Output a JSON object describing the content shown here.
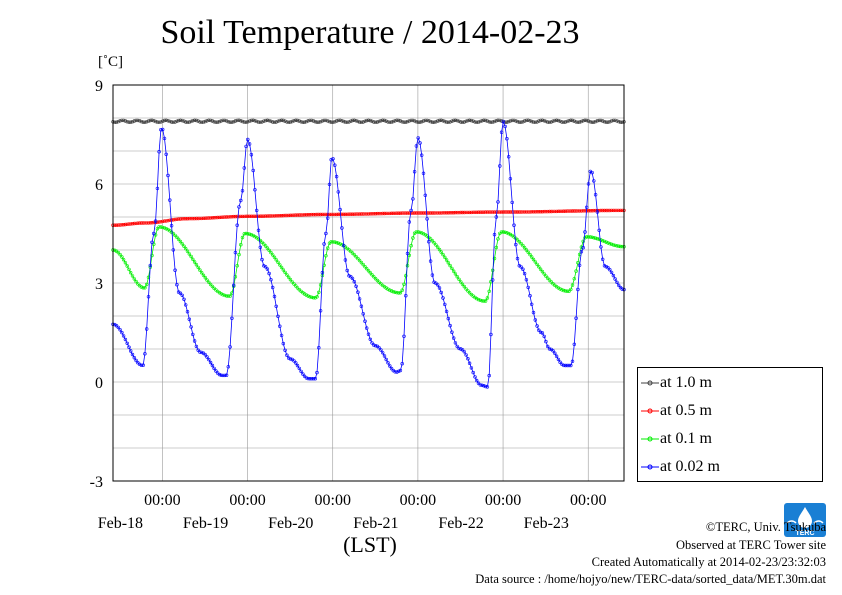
{
  "header": {
    "title": "Soil Temperature / 2014-02-23",
    "unit_label": "[˚C]",
    "x_axis_label": "(LST)"
  },
  "footer": {
    "copyright": "©TERC, Univ. Tsukuba",
    "site": "Observed at TERC Tower site",
    "created": "Created Automatically at 2014-02-23/23:32:03",
    "source": "Data source : /home/hojyo/new/TERC-data/sorted_data/MET.30m.dat",
    "logo_text": "TERC"
  },
  "legend": {
    "items": [
      {
        "label": "at 1.0 m",
        "color": "#404040"
      },
      {
        "label": "at 0.5 m",
        "color": "#ff0000"
      },
      {
        "label": "at 0.1 m",
        "color": "#00ee00"
      },
      {
        "label": "at 0.02 m",
        "color": "#0000ff"
      }
    ]
  },
  "chart_data": {
    "type": "line",
    "title": "Soil Temperature / 2014-02-23",
    "ylabel": "[˚C]",
    "xlabel": "(LST)",
    "x_unit": "days",
    "xlim": [
      -0.58,
      5.42
    ],
    "ylim": [
      -3,
      9
    ],
    "yticks": [
      -3,
      0,
      3,
      6,
      9
    ],
    "xticks": [
      {
        "x": 0,
        "time": "00:00",
        "date": "Feb-18"
      },
      {
        "x": 1,
        "time": "00:00",
        "date": "Feb-19"
      },
      {
        "x": 2,
        "time": "00:00",
        "date": "Feb-20"
      },
      {
        "x": 3,
        "time": "00:00",
        "date": "Feb-21"
      },
      {
        "x": 4,
        "time": "00:00",
        "date": "Feb-22"
      },
      {
        "x": 5,
        "time": "00:00",
        "date": "Feb-23"
      }
    ],
    "grid": true,
    "legend_position": "right-bottom-outside",
    "sampling": "30 min",
    "series": [
      {
        "name": "at 1.0 m",
        "color": "#404040",
        "knots": [
          [
            -0.58,
            7.9
          ],
          [
            5.42,
            7.9
          ]
        ]
      },
      {
        "name": "at 0.5 m",
        "color": "#ff0000",
        "knots": [
          [
            -0.58,
            4.75
          ],
          [
            -0.2,
            4.82
          ],
          [
            0.3,
            4.95
          ],
          [
            1.0,
            5.02
          ],
          [
            2.0,
            5.08
          ],
          [
            3.0,
            5.12
          ],
          [
            4.0,
            5.15
          ],
          [
            5.42,
            5.2
          ]
        ]
      },
      {
        "name": "at 0.1 m",
        "color": "#00ee00",
        "knots": [
          [
            -0.58,
            4.0
          ],
          [
            -0.21,
            2.85
          ],
          [
            -0.04,
            4.7
          ],
          [
            0.79,
            2.6
          ],
          [
            0.97,
            4.5
          ],
          [
            1.8,
            2.55
          ],
          [
            1.98,
            4.25
          ],
          [
            2.79,
            2.7
          ],
          [
            2.98,
            4.55
          ],
          [
            3.79,
            2.45
          ],
          [
            3.98,
            4.55
          ],
          [
            4.77,
            2.75
          ],
          [
            4.98,
            4.4
          ],
          [
            5.42,
            4.1
          ]
        ]
      },
      {
        "name": "at 0.02 m",
        "color": "#0000ff",
        "knots": [
          [
            -0.58,
            1.75
          ],
          [
            -0.23,
            0.5
          ],
          [
            -0.1,
            4.5
          ],
          [
            -0.01,
            7.7
          ],
          [
            0.2,
            2.7
          ],
          [
            0.45,
            0.9
          ],
          [
            0.7,
            0.2
          ],
          [
            0.75,
            0.2
          ],
          [
            0.92,
            5.5
          ],
          [
            1.0,
            7.35
          ],
          [
            1.2,
            3.5
          ],
          [
            1.5,
            0.7
          ],
          [
            1.72,
            0.1
          ],
          [
            1.8,
            0.1
          ],
          [
            1.92,
            4.5
          ],
          [
            1.99,
            6.8
          ],
          [
            2.2,
            3.2
          ],
          [
            2.5,
            1.1
          ],
          [
            2.75,
            0.3
          ],
          [
            2.8,
            0.35
          ],
          [
            2.92,
            5.2
          ],
          [
            3.0,
            7.4
          ],
          [
            3.2,
            3.0
          ],
          [
            3.5,
            1.0
          ],
          [
            3.75,
            -0.1
          ],
          [
            3.82,
            -0.15
          ],
          [
            3.92,
            5.0
          ],
          [
            4.0,
            7.9
          ],
          [
            4.2,
            3.5
          ],
          [
            4.45,
            1.5
          ],
          [
            4.55,
            1.0
          ],
          [
            4.72,
            0.5
          ],
          [
            4.8,
            0.5
          ],
          [
            4.93,
            4.0
          ],
          [
            5.03,
            6.4
          ],
          [
            5.2,
            3.5
          ],
          [
            5.42,
            2.8
          ]
        ]
      }
    ]
  }
}
